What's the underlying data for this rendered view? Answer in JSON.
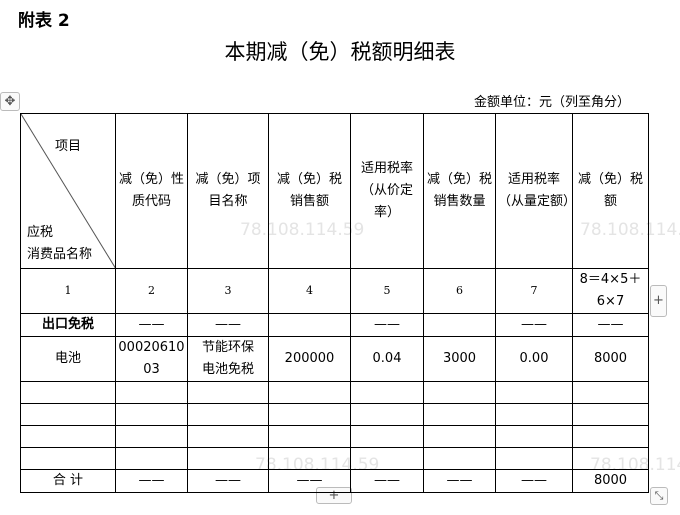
{
  "label": "附表 2",
  "title": "本期减（免）税额明细表",
  "unit": "金额单位：元（列至角分）",
  "header": {
    "diag_top": "项目",
    "diag_bottom": "应税\n消费品名称",
    "cols": [
      "减（免）性质代码",
      "减（免）项目名称",
      "减（免）税销售额",
      "适用税率（从价定率）",
      "减（免）税销售数量",
      "适用税率（从量定额）",
      "减（免）税额"
    ]
  },
  "numbers": [
    "1",
    "2",
    "3",
    "4",
    "5",
    "6",
    "7",
    "8＝4×5＋6×7"
  ],
  "rows": [
    [
      "出口免税",
      "——",
      "——",
      "",
      "——",
      "",
      "——",
      "——"
    ],
    [
      "电池",
      "0002061003",
      "节能环保电池免税",
      "200000",
      "0.04",
      "3000",
      "0.00",
      "8000"
    ],
    [
      "",
      "",
      "",
      "",
      "",
      "",
      "",
      ""
    ],
    [
      "",
      "",
      "",
      "",
      "",
      "",
      "",
      ""
    ],
    [
      "",
      "",
      "",
      "",
      "",
      "",
      "",
      ""
    ],
    [
      "",
      "",
      "",
      "",
      "",
      "",
      "",
      ""
    ]
  ],
  "total": [
    "合  计",
    "——",
    "——",
    "——",
    "——",
    "——",
    "——",
    "8000"
  ],
  "watermark": "78.108.114.59",
  "controls": {
    "move": "✥",
    "add_col": "+",
    "add_row": "+",
    "resize": "⤡"
  }
}
